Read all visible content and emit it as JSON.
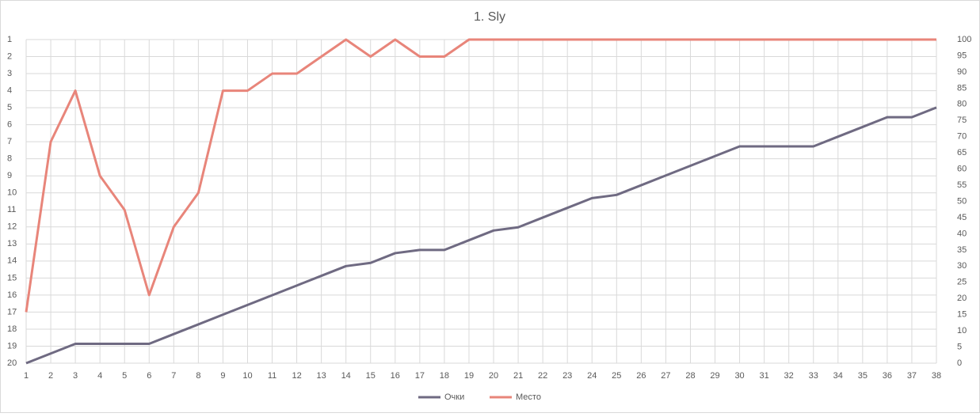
{
  "chart_data": {
    "type": "line",
    "title": "1. Sly",
    "x": [
      1,
      2,
      3,
      4,
      5,
      6,
      7,
      8,
      9,
      10,
      11,
      12,
      13,
      14,
      15,
      16,
      17,
      18,
      19,
      20,
      21,
      22,
      23,
      24,
      25,
      26,
      27,
      28,
      29,
      30,
      31,
      32,
      33,
      34,
      35,
      36,
      37,
      38
    ],
    "xlim": [
      1,
      38
    ],
    "xticks": [
      1,
      2,
      3,
      4,
      5,
      6,
      7,
      8,
      9,
      10,
      11,
      12,
      13,
      14,
      15,
      16,
      17,
      18,
      19,
      20,
      21,
      22,
      23,
      24,
      25,
      26,
      27,
      28,
      29,
      30,
      31,
      32,
      33,
      34,
      35,
      36,
      37,
      38
    ],
    "ylim": [
      20,
      1
    ],
    "yticks": [
      1,
      2,
      3,
      4,
      5,
      6,
      7,
      8,
      9,
      10,
      11,
      12,
      13,
      14,
      15,
      16,
      17,
      18,
      19,
      20
    ],
    "y2lim": [
      0,
      100
    ],
    "y2ticks": [
      0,
      5,
      10,
      15,
      20,
      25,
      30,
      35,
      40,
      45,
      50,
      55,
      60,
      65,
      70,
      75,
      80,
      85,
      90,
      95,
      100
    ],
    "grid": true,
    "legend": "bottom",
    "series": [
      {
        "name": "Очки",
        "color": "#6f6a82",
        "axis": "y2",
        "values": [
          0,
          3,
          6,
          6,
          6,
          6,
          9,
          12,
          15,
          18,
          21,
          24,
          27,
          30,
          31,
          34,
          35,
          35,
          38,
          41,
          42,
          45,
          48,
          51,
          52,
          55,
          58,
          61,
          64,
          67,
          67,
          67,
          67,
          70,
          73,
          76,
          76,
          79
        ]
      },
      {
        "name": "Место",
        "color": "#e8857a",
        "axis": "y",
        "values": [
          17,
          7,
          4,
          9,
          11,
          16,
          12,
          10,
          4,
          4,
          3,
          3,
          2,
          1,
          2,
          1,
          2,
          2,
          1,
          1,
          1,
          1,
          1,
          1,
          1,
          1,
          1,
          1,
          1,
          1,
          1,
          1,
          1,
          1,
          1,
          1,
          1,
          1
        ]
      }
    ]
  }
}
